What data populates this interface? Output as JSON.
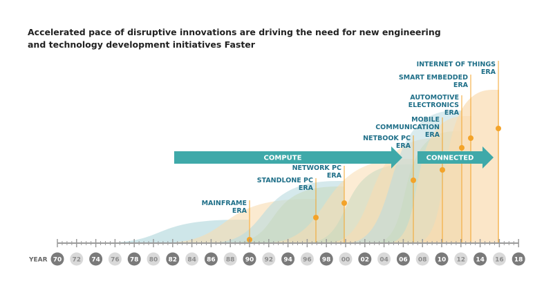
{
  "title": {
    "line1": "Accelerated pace of disruptive innovations are driving the need for new engineering",
    "line2": "and technology development initiatives Faster"
  },
  "axis": {
    "label": "YEAR",
    "ticks": [
      "70",
      "72",
      "74",
      "76",
      "78",
      "80",
      "82",
      "84",
      "86",
      "88",
      "90",
      "92",
      "94",
      "96",
      "98",
      "00",
      "02",
      "04",
      "06",
      "08",
      "10",
      "12",
      "14",
      "16",
      "18"
    ]
  },
  "arrows": [
    {
      "label": "COMPUTE"
    },
    {
      "label": "CONNECTED"
    }
  ],
  "eras": [
    {
      "lines": [
        "MAINFRAME",
        "ERA"
      ],
      "year": "90"
    },
    {
      "lines": [
        "STANDLONE PC",
        "ERA"
      ],
      "year": "97"
    },
    {
      "lines": [
        "NETWORK PC",
        "ERA"
      ],
      "year": "00"
    },
    {
      "lines": [
        "NETBOOK PC",
        "ERA"
      ],
      "year": "07"
    },
    {
      "lines": [
        "MOBILE",
        "COMMUNICATION",
        "ERA"
      ],
      "year": "10"
    },
    {
      "lines": [
        "AUTOMOTIVE",
        "ELECTRONICS",
        "ERA"
      ],
      "year": "12"
    },
    {
      "lines": [
        "SMART EMBEDDED",
        "ERA"
      ],
      "year": "13"
    },
    {
      "lines": [
        "INTERNET OF THINGS",
        "ERA"
      ],
      "year": "16"
    }
  ],
  "colors": {
    "teal": "#3fa9a9",
    "orange": "#f3a329",
    "blueWave": "#b9dbe0",
    "peachWave": "#f9dcb0",
    "greenWave": "#c7d9bd",
    "axis": "#9a9a9a",
    "tickDark": "#7a7a7a",
    "tickLight": "#d9d9d9",
    "label": "#1f6f88"
  }
}
